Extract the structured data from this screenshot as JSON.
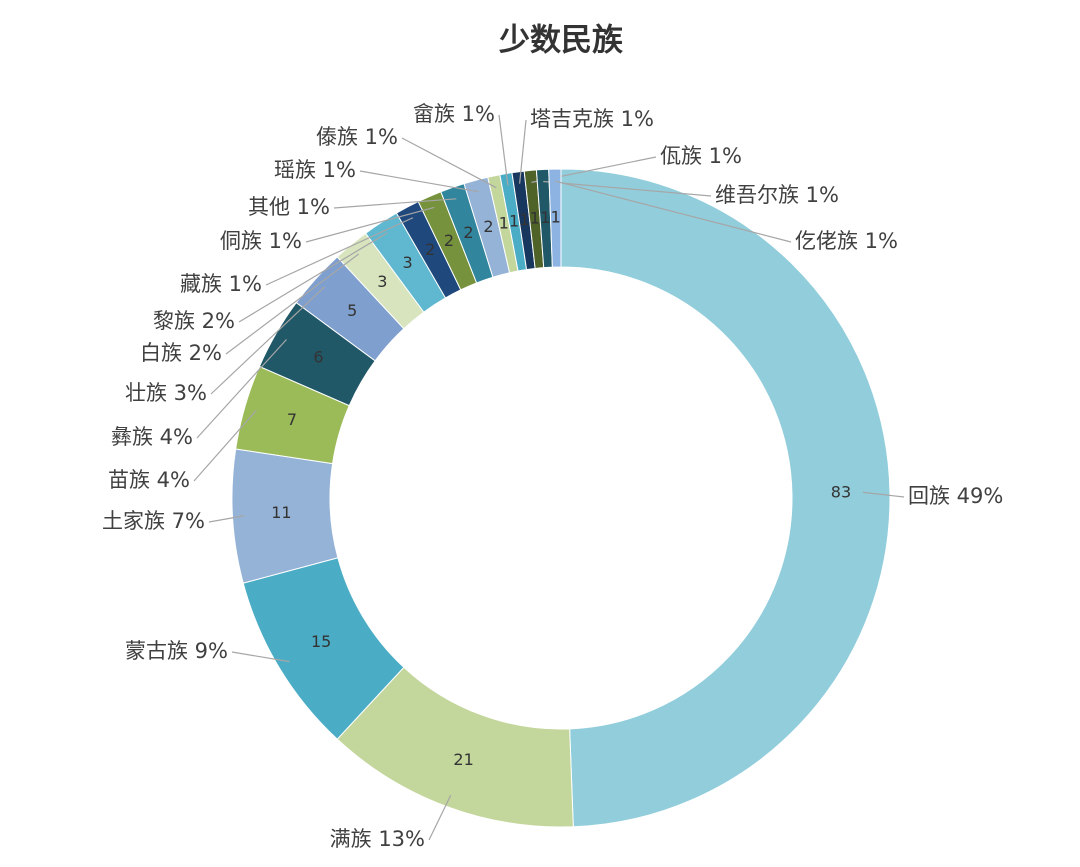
{
  "chart_data": {
    "type": "donut",
    "title": "少数民族",
    "categories": [
      "回族 49%",
      "满族 13%",
      "蒙古族 9%",
      "土家族 7%",
      "苗族 4%",
      "彝族 4%",
      "壮族 3%",
      "白族 2%",
      "黎族 2%",
      "藏族 1%",
      "侗族 1%",
      "其他 1%",
      "瑶族 1%",
      "傣族 1%",
      "畲族 1%",
      "塔吉克族 1%",
      "佤族 1%",
      "维吾尔族 1%",
      "仡佬族 1%"
    ],
    "values": [
      83,
      21,
      15,
      11,
      7,
      6,
      5,
      3,
      3,
      2,
      2,
      2,
      2,
      1,
      1,
      1,
      1,
      1,
      1
    ],
    "colors": [
      "#92cddc",
      "#c3d69b",
      "#4bacc6",
      "#95b3d7",
      "#9bbb59",
      "#215868",
      "#7f9fce",
      "#d7e4bd",
      "#5fb8d0",
      "#1f497d",
      "#76923c",
      "#31859c",
      "#95b3d7",
      "#c3d69b",
      "#4bacc6",
      "#17375e",
      "#4f6228",
      "#205867",
      "#8db3e2"
    ]
  }
}
